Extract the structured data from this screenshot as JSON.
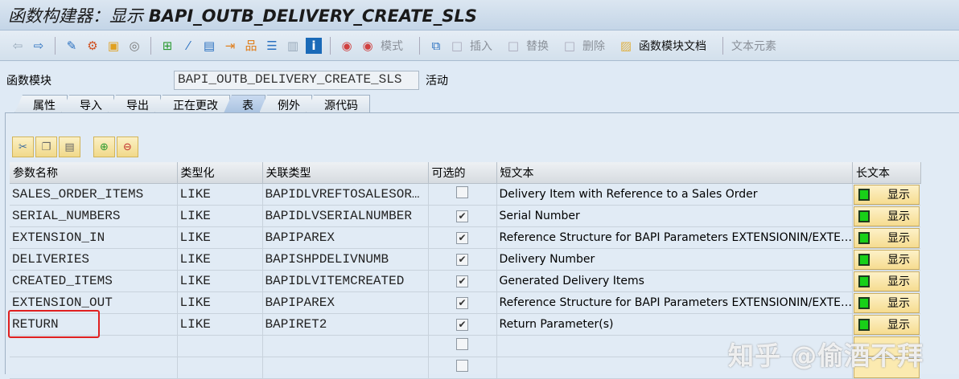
{
  "title": {
    "prefix": "函数构建器：显示 ",
    "name": "BAPI_OUTB_DELIVERY_CREATE_SLS"
  },
  "toolbar": {
    "icons": [
      "back-icon",
      "forward-icon",
      "edit-icon",
      "other-object-icon",
      "activate-icon",
      "where-used-icon",
      "check-icon",
      "magic-wand-icon",
      "display-object-list-icon",
      "navigate-icon",
      "hierarchy-icon",
      "stack-icon",
      "panel-icon",
      "info-icon",
      "test-icon",
      "debug-icon"
    ],
    "pattern": "模式",
    "insert": "插入",
    "replace": "替换",
    "delete": "删除",
    "fm_docs": "函数模块文档",
    "text_elements": "文本元素"
  },
  "function_module": {
    "label": "函数模块",
    "value": "BAPI_OUTB_DELIVERY_CREATE_SLS",
    "status": "活动"
  },
  "tabs": [
    {
      "label": "属性",
      "active": false
    },
    {
      "label": "导入",
      "active": false
    },
    {
      "label": "导出",
      "active": false
    },
    {
      "label": "正在更改",
      "active": false
    },
    {
      "label": "表",
      "active": true
    },
    {
      "label": "例外",
      "active": false
    },
    {
      "label": "源代码",
      "active": false
    }
  ],
  "table": {
    "headers": [
      "参数名称",
      "类型化",
      "关联类型",
      "可选的",
      "短文本",
      "长文本"
    ],
    "long_text_button": "显示",
    "rows": [
      {
        "name": "SALES_ORDER_ITEMS",
        "typing": "LIKE",
        "type": "BAPIDLVREFTOSALESOR…",
        "optional": false,
        "short_text": "Delivery Item with Reference to a Sales Order",
        "has_long_text": true
      },
      {
        "name": "SERIAL_NUMBERS",
        "typing": "LIKE",
        "type": "BAPIDLVSERIALNUMBER",
        "optional": true,
        "short_text": "Serial Number",
        "has_long_text": true
      },
      {
        "name": "EXTENSION_IN",
        "typing": "LIKE",
        "type": "BAPIPAREX",
        "optional": true,
        "short_text": "Reference Structure for BAPI Parameters EXTENSIONIN/EXTE…",
        "has_long_text": true
      },
      {
        "name": "DELIVERIES",
        "typing": "LIKE",
        "type": "BAPISHPDELIVNUMB",
        "optional": true,
        "short_text": "Delivery Number",
        "has_long_text": true
      },
      {
        "name": "CREATED_ITEMS",
        "typing": "LIKE",
        "type": "BAPIDLVITEMCREATED",
        "optional": true,
        "short_text": "Generated Delivery Items",
        "has_long_text": true
      },
      {
        "name": "EXTENSION_OUT",
        "typing": "LIKE",
        "type": "BAPIPAREX",
        "optional": true,
        "short_text": "Reference Structure for BAPI Parameters EXTENSIONIN/EXTE…",
        "has_long_text": true
      },
      {
        "name": "RETURN",
        "typing": "LIKE",
        "type": "BAPIRET2",
        "optional": true,
        "short_text": "Return Parameter(s)",
        "has_long_text": true
      },
      {
        "name": "",
        "typing": "",
        "type": "",
        "optional": false,
        "short_text": "",
        "has_long_text": false
      },
      {
        "name": "",
        "typing": "",
        "type": "",
        "optional": false,
        "short_text": "",
        "has_long_text": false
      }
    ]
  },
  "highlight_color": "#e02020",
  "watermark": "知乎 @偷酒不拜"
}
